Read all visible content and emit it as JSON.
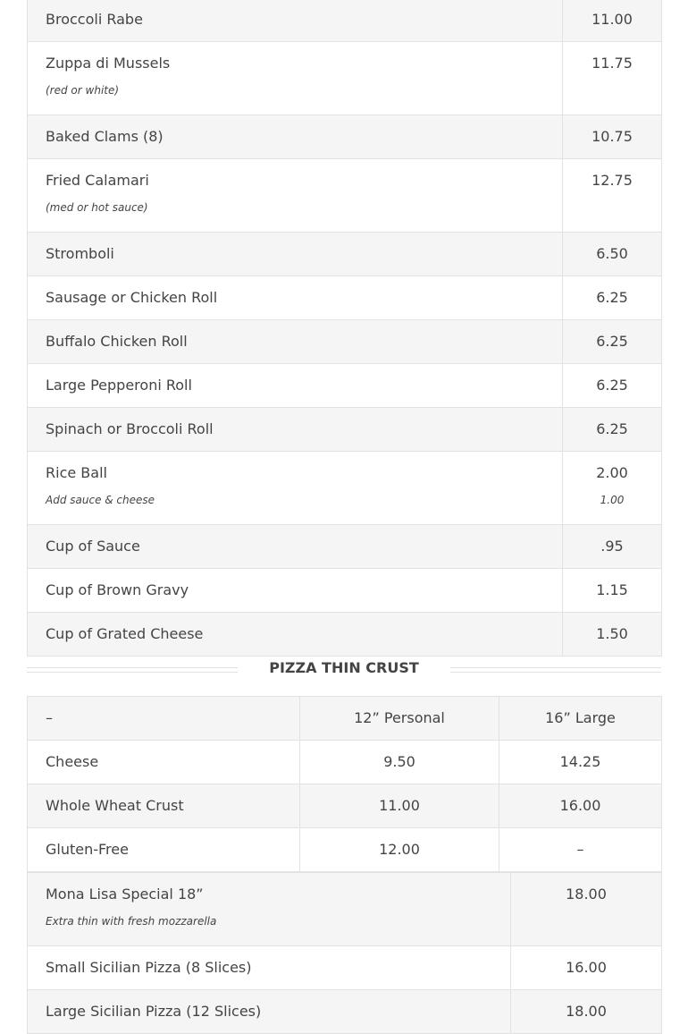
{
  "appetizers": [
    {
      "name": "Broccoli Rabe",
      "price": "11.00"
    },
    {
      "name": "Zuppa di Mussels",
      "note": "(red or white)",
      "price": "11.75"
    },
    {
      "name": "Baked Clams (8)",
      "price": "10.75"
    },
    {
      "name": "Fried Calamari",
      "note": "(med or hot sauce)",
      "price": "12.75"
    },
    {
      "name": "Stromboli",
      "price": "6.50"
    },
    {
      "name": "Sausage or Chicken Roll",
      "price": "6.25"
    },
    {
      "name": "Buffalo Chicken Roll",
      "price": "6.25"
    },
    {
      "name": "Large Pepperoni Roll",
      "price": "6.25"
    },
    {
      "name": "Spinach or Broccoli Roll",
      "price": "6.25"
    },
    {
      "name": "Rice Ball",
      "note": "Add sauce & cheese",
      "price": "2.00",
      "price_note": "1.00"
    },
    {
      "name": "Cup of Sauce",
      "price": ".95"
    },
    {
      "name": "Cup of Brown Gravy",
      "price": "1.15"
    },
    {
      "name": "Cup of Grated Cheese",
      "price": "1.50"
    }
  ],
  "pizza_section": {
    "title": "PIZZA THIN CRUST",
    "header": {
      "name": "–",
      "col1": "12” Personal",
      "col2": "16” Large"
    },
    "rows": [
      {
        "name": "Cheese",
        "col1": "9.50",
        "col2": "14.25"
      },
      {
        "name": "Whole Wheat Crust",
        "col1": "11.00",
        "col2": "16.00"
      },
      {
        "name": "Gluten-Free",
        "col1": "12.00",
        "col2": "–"
      }
    ],
    "specials": [
      {
        "name": "Mona Lisa Special 18”",
        "note": "Extra thin with fresh mozzarella",
        "price": "18.00"
      },
      {
        "name": "Small Sicilian Pizza (8 Slices)",
        "price": "16.00"
      },
      {
        "name": "Large Sicilian Pizza (12 Slices)",
        "price": "18.00"
      }
    ]
  }
}
